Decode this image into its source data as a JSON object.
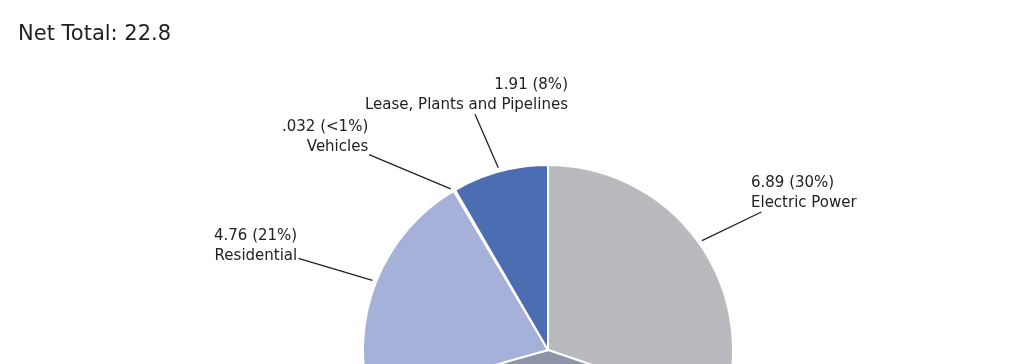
{
  "chart_data": {
    "type": "pie",
    "title": "Net Total: 22.8",
    "categories": [
      "Electric Power",
      null,
      "Residential",
      "Vehicles",
      "Lease, Plants and Pipelines"
    ],
    "values": [
      6.89,
      9.21,
      4.76,
      0.032,
      1.91
    ],
    "value_labels": [
      "6.89 (30%)",
      null,
      "4.76 (21%)",
      ".032 (<1%)",
      "1.91 (8%)"
    ],
    "colors": [
      "#b9babd",
      "#8e95a8",
      "#a6b1d9",
      "#2f3f6e",
      "#4c6db2"
    ],
    "legend": false
  }
}
